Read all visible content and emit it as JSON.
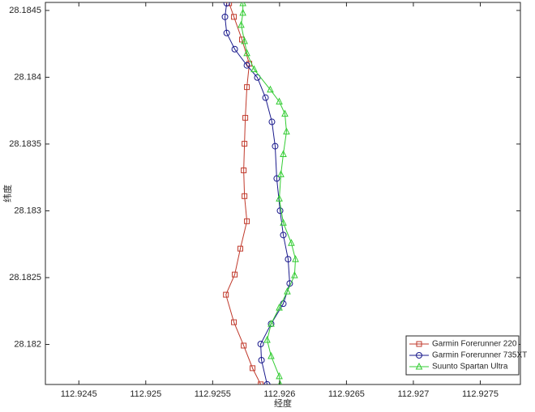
{
  "chart_data": {
    "type": "line",
    "xlabel": "经度",
    "ylabel": "纬度",
    "xlim": [
      112.92425,
      112.9278
    ],
    "ylim": [
      28.1817,
      28.18456
    ],
    "xticks": [
      112.9245,
      112.925,
      112.9255,
      112.926,
      112.9265,
      112.927,
      112.9275
    ],
    "yticks": [
      28.182,
      28.1825,
      28.183,
      28.1835,
      28.184,
      28.1845
    ],
    "legend": "southeast",
    "series": [
      {
        "name": "Garmin Forerunner 220",
        "color": "#c0392b",
        "marker": "square",
        "x": [
          112.925623,
          112.925659,
          112.925719,
          112.925774,
          112.925756,
          112.925744,
          112.925738,
          112.925732,
          112.925738,
          112.925756,
          112.925707,
          112.925665,
          112.925599,
          112.925659,
          112.925732,
          112.925798,
          112.925859
        ],
        "values": [
          28.184554,
          28.184452,
          28.184282,
          28.184101,
          28.183926,
          28.183696,
          28.183502,
          28.183303,
          28.18311,
          28.182922,
          28.182717,
          28.182523,
          28.182372,
          28.182166,
          28.181991,
          28.181822,
          28.181701
        ]
      },
      {
        "name": "Garmin Forerunner 735XT",
        "color": "#1a1a8c",
        "marker": "circle",
        "x": [
          112.925605,
          112.925592,
          112.925605,
          112.925665,
          112.925756,
          112.925834,
          112.925895,
          112.925943,
          112.925967,
          112.925979,
          112.926004,
          112.926028,
          112.926064,
          112.926076,
          112.926028,
          112.925937,
          112.925859,
          112.925865,
          112.925907
        ],
        "values": [
          28.184554,
          28.184452,
          28.184331,
          28.18421,
          28.184089,
          28.183998,
          28.183847,
          28.183666,
          28.183484,
          28.183242,
          28.183001,
          28.182819,
          28.182638,
          28.182456,
          28.182305,
          28.182154,
          28.182003,
          28.181882,
          28.181701
        ]
      },
      {
        "name": "Suunto Spartan Ultra",
        "color": "#33cc33",
        "marker": "triangle",
        "x": [
          112.925726,
          112.925726,
          112.925713,
          112.925738,
          112.925756,
          112.92581,
          112.925931,
          112.925998,
          112.92604,
          112.926052,
          112.926028,
          112.92601,
          112.925998,
          112.926028,
          112.926088,
          112.926119,
          112.926112,
          112.926058,
          112.925998,
          112.925937,
          112.925907,
          112.925937,
          112.925998,
          112.926004
        ],
        "values": [
          28.184554,
          28.184482,
          28.184391,
          28.18427,
          28.18418,
          28.184059,
          28.183907,
          28.183817,
          28.183726,
          28.183593,
          28.183424,
          28.183273,
          28.183091,
          28.18291,
          28.182759,
          28.182638,
          28.182517,
          28.182396,
          28.182275,
          28.182154,
          28.182033,
          28.181912,
          28.181761,
          28.181701
        ]
      }
    ]
  }
}
